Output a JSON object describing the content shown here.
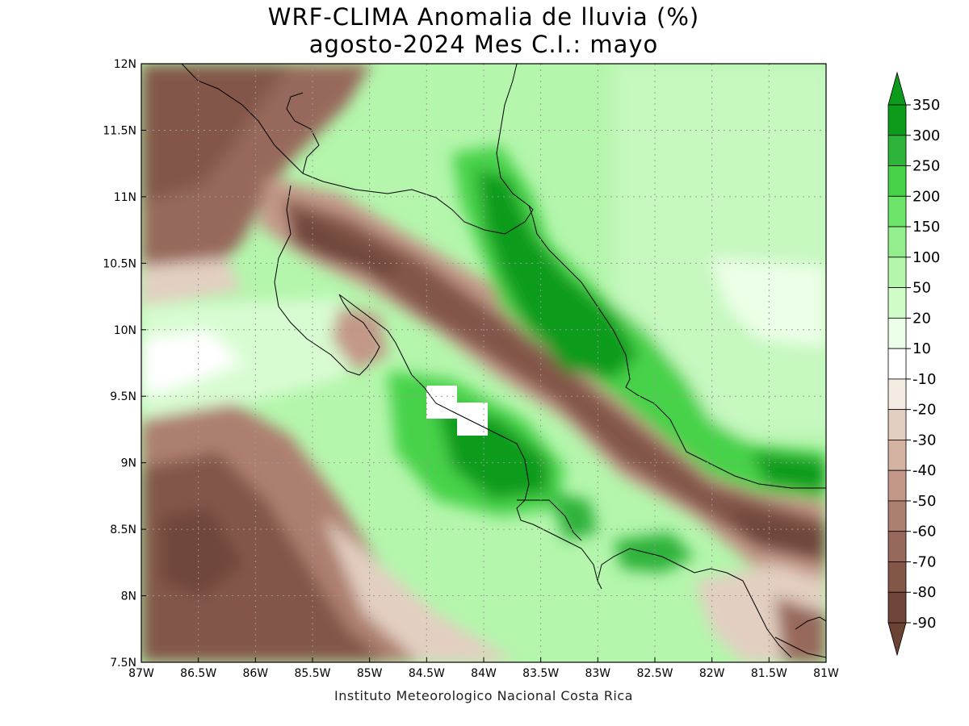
{
  "title": {
    "line1": "WRF-CLIMA Anomalia de lluvia (%)",
    "line2": "agosto-2024 Mes C.I.: mayo"
  },
  "credit": "Instituto Meteorologico Nacional Costa Rica",
  "map": {
    "lon_range": [
      -87,
      -81
    ],
    "lat_range": [
      7.5,
      12
    ],
    "x_ticks": [
      "87W",
      "86.5W",
      "86W",
      "85.5W",
      "85W",
      "84.5W",
      "84W",
      "83.5W",
      "83W",
      "82.5W",
      "82W",
      "81.5W",
      "81W"
    ],
    "y_ticks": [
      "7.5N",
      "8N",
      "8.5N",
      "9N",
      "9.5N",
      "10N",
      "10.5N",
      "11N",
      "11.5N",
      "12N"
    ],
    "grid": true,
    "region": "Costa Rica"
  },
  "colorbar": {
    "labels": [
      "350",
      "300",
      "250",
      "200",
      "150",
      "100",
      "50",
      "20",
      "10",
      "-10",
      "-20",
      "-30",
      "-40",
      "-50",
      "-60",
      "-70",
      "-80",
      "-90"
    ],
    "colors": [
      "#0c9b1a",
      "#2db23a",
      "#47d24a",
      "#6de46a",
      "#94ee8e",
      "#b4f6ac",
      "#d0fcc8",
      "#ecffe8",
      "#ffffff",
      "#f4ebe2",
      "#e3cfc1",
      "#d4b3a3",
      "#c39888",
      "#ad7f70",
      "#97695c",
      "#835648",
      "#70463a"
    ],
    "top_arrow_color": "#0c9b1a",
    "bottom_arrow_color": "#6b4334"
  }
}
